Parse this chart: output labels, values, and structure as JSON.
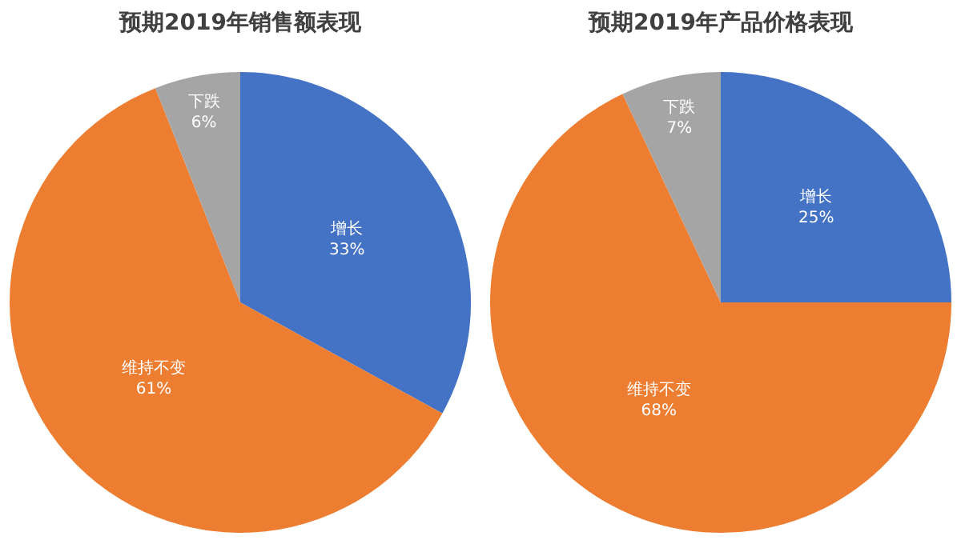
{
  "chart_data": [
    {
      "type": "pie",
      "title": "预期2019年销售额表现",
      "categories": [
        "增长",
        "维持不变",
        "下跌"
      ],
      "values": [
        33,
        61,
        6
      ],
      "value_labels": [
        "33%",
        "61%",
        "6%"
      ],
      "colors": [
        "#4472c4",
        "#ed7d31",
        "#a5a5a5"
      ],
      "legend": false
    },
    {
      "type": "pie",
      "title": "预期2019年产品价格表现",
      "categories": [
        "增长",
        "维持不变",
        "下跌"
      ],
      "values": [
        25,
        68,
        7
      ],
      "value_labels": [
        "25%",
        "68%",
        "7%"
      ],
      "colors": [
        "#4472c4",
        "#ed7d31",
        "#a5a5a5"
      ],
      "legend": false
    }
  ]
}
